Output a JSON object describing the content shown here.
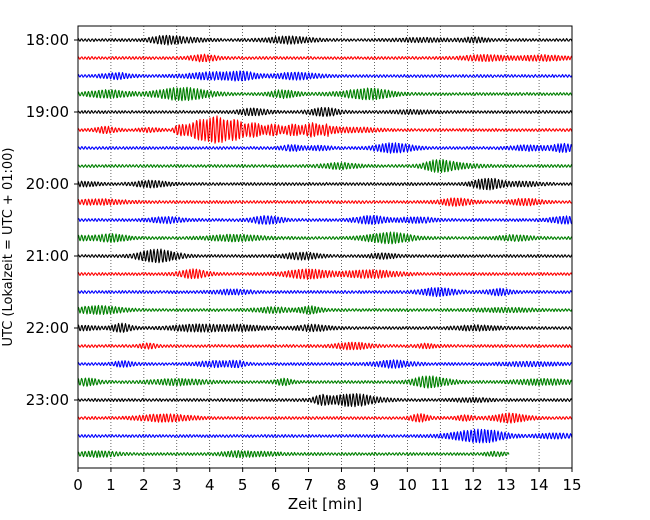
{
  "chart_data": {
    "type": "line",
    "title": "",
    "xlabel": "Zeit  [min]",
    "ylabel": "UTC (Lokalzeit = UTC + 01:00)",
    "xlim": [
      0,
      15
    ],
    "x_ticks": [
      "0",
      "1",
      "2",
      "3",
      "4",
      "5",
      "6",
      "7",
      "8",
      "9",
      "10",
      "11",
      "12",
      "13",
      "14",
      "15"
    ],
    "y_tick_labels": [
      "18:00",
      "19:00",
      "20:00",
      "21:00",
      "22:00",
      "23:00"
    ],
    "row_interval_minutes": 15,
    "grid": "vertical dotted lines at each minute",
    "series_colors": [
      "#000000",
      "#ff0000",
      "#0000ff",
      "#008000"
    ],
    "rows": [
      {
        "start": "18:00",
        "color": "#000000",
        "end_minute": 15,
        "event": null
      },
      {
        "start": "18:15",
        "color": "#ff0000",
        "end_minute": 15,
        "event": null
      },
      {
        "start": "18:30",
        "color": "#0000ff",
        "end_minute": 15,
        "event": null
      },
      {
        "start": "18:45",
        "color": "#008000",
        "end_minute": 15,
        "event": null
      },
      {
        "start": "19:00",
        "color": "#000000",
        "end_minute": 15,
        "event": null
      },
      {
        "start": "19:15",
        "color": "#ff0000",
        "end_minute": 15,
        "event": {
          "start_minute": 2.8,
          "peak_minute": 4.1,
          "end_minute": 7.6,
          "peak_amplitude": 3.2
        }
      },
      {
        "start": "19:30",
        "color": "#0000ff",
        "end_minute": 15,
        "event": null
      },
      {
        "start": "19:45",
        "color": "#008000",
        "end_minute": 15,
        "event": null
      },
      {
        "start": "20:00",
        "color": "#000000",
        "end_minute": 15,
        "event": null
      },
      {
        "start": "20:15",
        "color": "#ff0000",
        "end_minute": 15,
        "event": null
      },
      {
        "start": "20:30",
        "color": "#0000ff",
        "end_minute": 15,
        "event": null
      },
      {
        "start": "20:45",
        "color": "#008000",
        "end_minute": 15,
        "event": null
      },
      {
        "start": "21:00",
        "color": "#000000",
        "end_minute": 15,
        "event": null
      },
      {
        "start": "21:15",
        "color": "#ff0000",
        "end_minute": 15,
        "event": null
      },
      {
        "start": "21:30",
        "color": "#0000ff",
        "end_minute": 15,
        "event": null
      },
      {
        "start": "21:45",
        "color": "#008000",
        "end_minute": 15,
        "event": null
      },
      {
        "start": "22:00",
        "color": "#000000",
        "end_minute": 15,
        "event": null
      },
      {
        "start": "22:15",
        "color": "#ff0000",
        "end_minute": 15,
        "event": null
      },
      {
        "start": "22:30",
        "color": "#0000ff",
        "end_minute": 15,
        "event": null
      },
      {
        "start": "22:45",
        "color": "#008000",
        "end_minute": 15,
        "event": null
      },
      {
        "start": "23:00",
        "color": "#000000",
        "end_minute": 15,
        "event": null
      },
      {
        "start": "23:15",
        "color": "#ff0000",
        "end_minute": 15,
        "event": null
      },
      {
        "start": "23:30",
        "color": "#0000ff",
        "end_minute": 15,
        "event": null
      },
      {
        "start": "23:45",
        "color": "#008000",
        "end_minute": 13.1,
        "event": null
      }
    ]
  }
}
